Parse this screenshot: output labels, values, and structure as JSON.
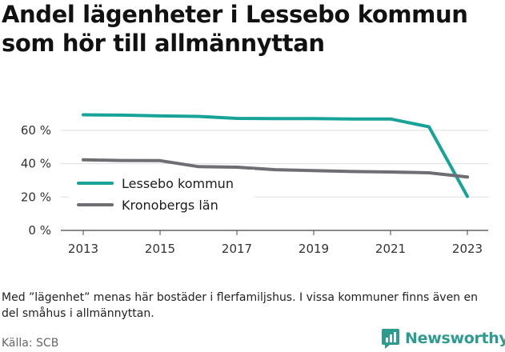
{
  "title": "Andel lägenheter i Lessebo kommun som hör till allmännyttan",
  "note": "Med ”lägenhet” menas här bostäder i flerfamiljshus. I vissa kommuner finns även en del småhus i allmännyttan.",
  "source": "Källa: SCB",
  "brand": "Newsworthy",
  "colors": {
    "lessebo": "#17a398",
    "kronoberg": "#6e6e73",
    "grid": "#dedede",
    "brand": "#2d9c8f"
  },
  "chart_data": {
    "type": "line",
    "x": [
      2013,
      2014,
      2015,
      2016,
      2017,
      2018,
      2019,
      2020,
      2021,
      2022,
      2023
    ],
    "x_ticks": [
      "2013",
      "2015",
      "2017",
      "2019",
      "2021",
      "2023"
    ],
    "y_ticks": [
      "0 %",
      "20 %",
      "40 %",
      "60 %"
    ],
    "ylim": [
      0,
      70
    ],
    "grid": true,
    "legend_position": "left",
    "series": [
      {
        "name": "Lessebo kommun",
        "color": "#17a398",
        "values": [
          69.3,
          69.1,
          68.6,
          68.3,
          67.1,
          67.0,
          67.0,
          66.8,
          66.8,
          62.1,
          20.4
        ]
      },
      {
        "name": "Kronobergs län",
        "color": "#6e6e73",
        "values": [
          42.3,
          41.9,
          41.8,
          38.2,
          37.9,
          36.4,
          35.8,
          35.3,
          35.0,
          34.5,
          32.0
        ]
      }
    ]
  }
}
